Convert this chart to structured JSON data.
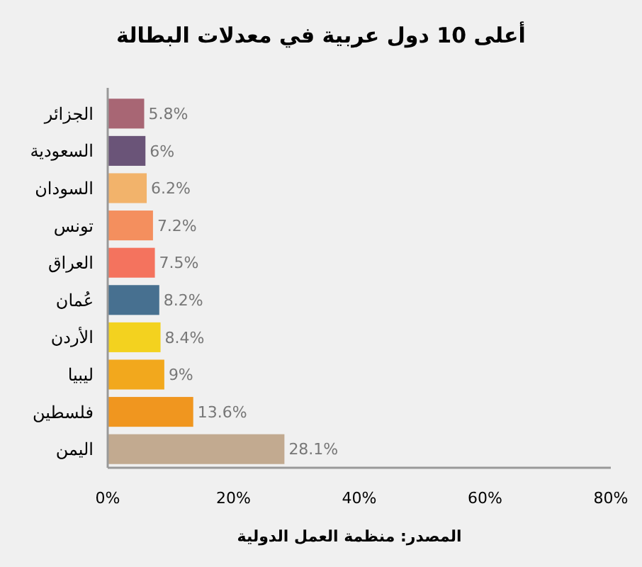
{
  "chart_data": {
    "type": "bar",
    "orientation": "horizontal",
    "title": "أعلى 10 دول عربية في معدلات البطالة",
    "categories": [
      "الجزائر",
      "السعودية",
      "السودان",
      "تونس",
      "العراق",
      "عُمان",
      "الأردن",
      "ليبيا",
      "فلسطين",
      "اليمن"
    ],
    "values": [
      5.8,
      6,
      6.2,
      7.2,
      7.5,
      8.2,
      8.4,
      9,
      13.6,
      28.1
    ],
    "colors": [
      "#a86674",
      "#6a5478",
      "#f2b36b",
      "#f48f5e",
      "#f4735e",
      "#477090",
      "#f3d21f",
      "#f2a81d",
      "#f0961f",
      "#c2aa90"
    ],
    "value_labels": [
      "5.8%",
      "6%",
      "6.2%",
      "7.2%",
      "7.5%",
      "8.2%",
      "8.4%",
      "9%",
      "13.6%",
      "28.1%"
    ],
    "xlim": [
      0,
      80
    ],
    "xticks": [
      {
        "value": 0,
        "label": "0%"
      },
      {
        "value": 20,
        "label": "20%"
      },
      {
        "value": 40,
        "label": "40%"
      },
      {
        "value": 60,
        "label": "60%"
      },
      {
        "value": 80,
        "label": "80%"
      }
    ],
    "grid": false,
    "annotations": [
      "المصدر: منظمة العمل الدولية"
    ]
  }
}
